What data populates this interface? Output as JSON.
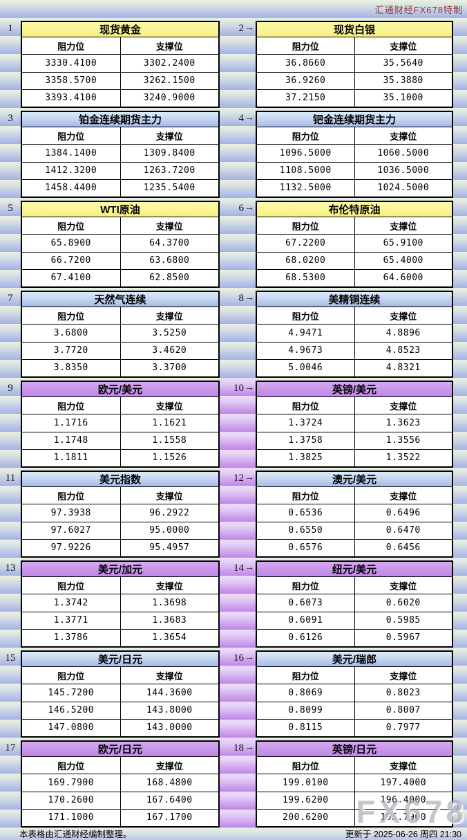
{
  "page": {
    "brand_label": "汇通财经FX678特制",
    "watermark": "FX678",
    "footer_left": "本表格由汇通财经编制整理。",
    "footer_right": "更新于 2025-06-26 周四 21:30",
    "col_resistance": "阻力位",
    "col_support": "支撑位",
    "arrow": "→"
  },
  "colors": {
    "brand_red": "#8a3a3a",
    "header_yellow": "#faf492",
    "header_blue": "#a4bae8",
    "header_purple": "#c793ea",
    "band_blue": "#a9b5e4",
    "band_purple": "#c08ae8"
  },
  "sections": [
    {
      "mid_purple": false,
      "left": {
        "num": "1",
        "title": "现货黄金",
        "theme": "yellow",
        "rows": [
          [
            "3330.4100",
            "3302.2400"
          ],
          [
            "3358.5700",
            "3262.1500"
          ],
          [
            "3393.4100",
            "3240.9000"
          ]
        ]
      },
      "right": {
        "num": "2",
        "title": "现货白银",
        "theme": "yellow",
        "rows": [
          [
            "36.8660",
            "35.5640"
          ],
          [
            "36.9260",
            "35.3880"
          ],
          [
            "37.2150",
            "35.1000"
          ]
        ]
      }
    },
    {
      "mid_purple": false,
      "left": {
        "num": "3",
        "title": "铂金连续期货主力",
        "theme": "blue",
        "rows": [
          [
            "1384.1400",
            "1309.8400"
          ],
          [
            "1412.3200",
            "1263.7200"
          ],
          [
            "1458.4400",
            "1235.5400"
          ]
        ]
      },
      "right": {
        "num": "4",
        "title": "钯金连续期货主力",
        "theme": "blue",
        "rows": [
          [
            "1096.5000",
            "1060.5000"
          ],
          [
            "1108.5000",
            "1036.5000"
          ],
          [
            "1132.5000",
            "1024.5000"
          ]
        ]
      }
    },
    {
      "mid_purple": false,
      "left": {
        "num": "5",
        "title": "WTI原油",
        "theme": "yellow",
        "rows": [
          [
            "65.8900",
            "64.3700"
          ],
          [
            "66.7200",
            "63.6800"
          ],
          [
            "67.4100",
            "62.8500"
          ]
        ]
      },
      "right": {
        "num": "6",
        "title": "布伦特原油",
        "theme": "yellow",
        "rows": [
          [
            "67.2200",
            "65.9100"
          ],
          [
            "68.0200",
            "65.4000"
          ],
          [
            "68.5300",
            "64.6000"
          ]
        ]
      }
    },
    {
      "mid_purple": false,
      "left": {
        "num": "7",
        "title": "天然气连续",
        "theme": "blue",
        "rows": [
          [
            "3.6800",
            "3.5250"
          ],
          [
            "3.7720",
            "3.4620"
          ],
          [
            "3.8350",
            "3.3700"
          ]
        ]
      },
      "right": {
        "num": "8",
        "title": "美精铜连续",
        "theme": "blue",
        "rows": [
          [
            "4.9471",
            "4.8896"
          ],
          [
            "4.9673",
            "4.8523"
          ],
          [
            "5.0046",
            "4.8321"
          ]
        ]
      }
    },
    {
      "mid_purple": true,
      "left": {
        "num": "9",
        "title": "欧元/美元",
        "theme": "purple",
        "rows": [
          [
            "1.1716",
            "1.1621"
          ],
          [
            "1.1748",
            "1.1558"
          ],
          [
            "1.1811",
            "1.1526"
          ]
        ]
      },
      "right": {
        "num": "10",
        "title": "英镑/美元",
        "theme": "purple",
        "rows": [
          [
            "1.3724",
            "1.3623"
          ],
          [
            "1.3758",
            "1.3556"
          ],
          [
            "1.3825",
            "1.3522"
          ]
        ]
      }
    },
    {
      "mid_purple": true,
      "left": {
        "num": "11",
        "title": "美元指数",
        "theme": "blue",
        "rows": [
          [
            "97.3938",
            "96.2922"
          ],
          [
            "97.6027",
            "95.0000"
          ],
          [
            "97.9226",
            "95.4957"
          ]
        ]
      },
      "right": {
        "num": "12",
        "title": "澳元/美元",
        "theme": "blue",
        "rows": [
          [
            "0.6536",
            "0.6496"
          ],
          [
            "0.6550",
            "0.6470"
          ],
          [
            "0.6576",
            "0.6456"
          ]
        ]
      }
    },
    {
      "mid_purple": true,
      "left": {
        "num": "13",
        "title": "美元/加元",
        "theme": "purple",
        "rows": [
          [
            "1.3742",
            "1.3698"
          ],
          [
            "1.3771",
            "1.3683"
          ],
          [
            "1.3786",
            "1.3654"
          ]
        ]
      },
      "right": {
        "num": "14",
        "title": "纽元/美元",
        "theme": "purple",
        "rows": [
          [
            "0.6073",
            "0.6020"
          ],
          [
            "0.6091",
            "0.5985"
          ],
          [
            "0.6126",
            "0.5967"
          ]
        ]
      }
    },
    {
      "mid_purple": true,
      "left": {
        "num": "15",
        "title": "美元/日元",
        "theme": "blue",
        "rows": [
          [
            "145.7200",
            "144.3600"
          ],
          [
            "146.5200",
            "143.8000"
          ],
          [
            "147.0800",
            "143.0000"
          ]
        ]
      },
      "right": {
        "num": "16",
        "title": "美元/瑞郎",
        "theme": "blue",
        "rows": [
          [
            "0.8069",
            "0.8023"
          ],
          [
            "0.8099",
            "0.8007"
          ],
          [
            "0.8115",
            "0.7977"
          ]
        ]
      }
    },
    {
      "mid_purple": true,
      "left": {
        "num": "17",
        "title": "欧元/日元",
        "theme": "purple",
        "rows": [
          [
            "169.7900",
            "168.4800"
          ],
          [
            "170.2600",
            "167.6400"
          ],
          [
            "171.1000",
            "167.1700"
          ]
        ]
      },
      "right": {
        "num": "18",
        "title": "英镑/日元",
        "theme": "purple",
        "rows": [
          [
            "199.0100",
            "197.4000"
          ],
          [
            "199.6200",
            "196.4000"
          ],
          [
            "200.6200",
            "195.7900"
          ]
        ]
      }
    }
  ]
}
